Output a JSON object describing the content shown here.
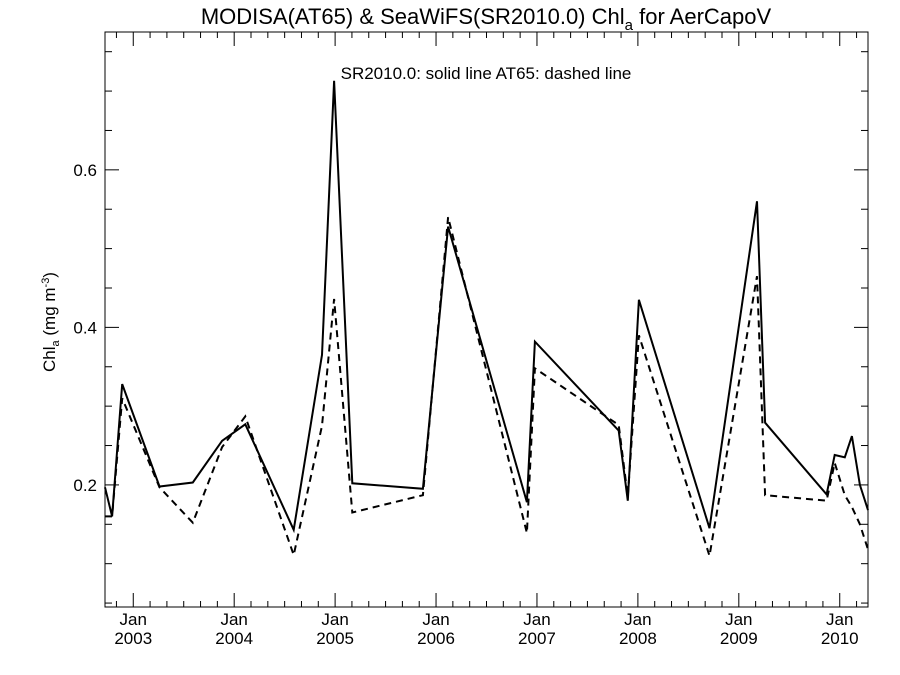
{
  "chart_data": {
    "type": "line",
    "title_main": "MODISA(AT65) & SeaWiFS(SR2010.0)  Chl",
    "title_sub": "a",
    "title_tail": " for AerCapoV",
    "annotation": "SR2010.0: solid line   AT65: dashed line",
    "ylabel_main": "Chl",
    "ylabel_sub": "a",
    "ylabel_unit": " (mg m",
    "ylabel_sup": "-3",
    "ylabel_close": ")",
    "ylim": [
      0.045,
      0.775
    ],
    "xlim": [
      2002.72,
      2010.28
    ],
    "yticks": [
      {
        "value": 0.2,
        "label": "0.2"
      },
      {
        "value": 0.4,
        "label": "0.4"
      },
      {
        "value": 0.6,
        "label": "0.6"
      }
    ],
    "xticks": [
      {
        "value": 2003.0,
        "month": "Jan",
        "year": "2003"
      },
      {
        "value": 2004.0,
        "month": "Jan",
        "year": "2004"
      },
      {
        "value": 2005.0,
        "month": "Jan",
        "year": "2005"
      },
      {
        "value": 2006.0,
        "month": "Jan",
        "year": "2006"
      },
      {
        "value": 2007.0,
        "month": "Jan",
        "year": "2007"
      },
      {
        "value": 2008.0,
        "month": "Jan",
        "year": "2008"
      },
      {
        "value": 2009.0,
        "month": "Jan",
        "year": "2009"
      },
      {
        "value": 2010.0,
        "month": "Jan",
        "year": "2010"
      }
    ],
    "series": [
      {
        "style": "solid",
        "x": [
          2002.72,
          2002.79,
          2002.89,
          2003.26,
          2003.59,
          2003.88,
          2004.11,
          2004.59,
          2004.87,
          2004.99,
          2005.17,
          2005.87,
          2006.12,
          2006.9,
          2006.98,
          2007.81,
          2007.9,
          2008.01,
          2008.71,
          2009.18,
          2009.26,
          2009.87,
          2009.95,
          2010.05,
          2010.12,
          2010.2,
          2010.28
        ],
        "y": [
          0.197,
          0.16,
          0.328,
          0.198,
          0.203,
          0.256,
          0.277,
          0.143,
          0.365,
          0.713,
          0.202,
          0.195,
          0.528,
          0.178,
          0.382,
          0.269,
          0.18,
          0.435,
          0.145,
          0.56,
          0.279,
          0.188,
          0.238,
          0.235,
          0.262,
          0.2,
          0.168
        ]
      },
      {
        "style": "dashed",
        "x": [
          2002.72,
          2002.79,
          2002.89,
          2003.26,
          2003.59,
          2003.88,
          2004.11,
          2004.59,
          2004.87,
          2004.99,
          2005.17,
          2005.87,
          2006.12,
          2006.9,
          2006.98,
          2007.81,
          2007.9,
          2008.01,
          2008.71,
          2009.18,
          2009.26,
          2009.87,
          2009.95,
          2010.05,
          2010.12,
          2010.2,
          2010.28
        ],
        "y": [
          0.16,
          0.16,
          0.31,
          0.197,
          0.152,
          0.248,
          0.287,
          0.111,
          0.275,
          0.436,
          0.165,
          0.187,
          0.54,
          0.139,
          0.348,
          0.276,
          0.185,
          0.39,
          0.11,
          0.465,
          0.187,
          0.18,
          0.228,
          0.187,
          0.172,
          0.15,
          0.118
        ]
      }
    ]
  }
}
